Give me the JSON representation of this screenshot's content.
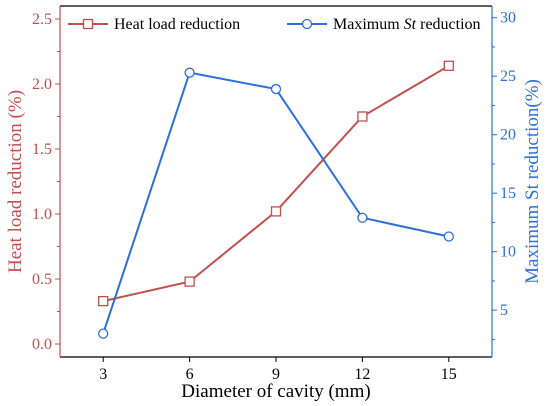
{
  "chart_data": {
    "type": "line",
    "x": [
      3,
      6,
      9,
      12,
      15
    ],
    "xlabel": "Diameter of cavity (mm)",
    "xlim": [
      1.5,
      16.5
    ],
    "x_ticks": [
      "3",
      "6",
      "9",
      "12",
      "15"
    ],
    "left_axis": {
      "label": "Heat load reduction (%)",
      "ylim": [
        -0.1,
        2.6
      ],
      "ticks": [
        "0.0",
        "0.5",
        "1.0",
        "1.5",
        "2.0",
        "2.5"
      ],
      "color": "#c0504d"
    },
    "right_axis": {
      "label": "Maximum St reduction(%)",
      "ylim": [
        1,
        31
      ],
      "ticks": [
        "5",
        "10",
        "15",
        "20",
        "25",
        "30"
      ],
      "color": "#2e6fd9"
    },
    "series": [
      {
        "name": "Heat load reduction",
        "axis": "left",
        "marker": "square",
        "color": "#c0504d",
        "values": [
          0.33,
          0.48,
          1.02,
          1.75,
          2.14
        ]
      },
      {
        "name": "Maximum ",
        "name_italic": "St",
        "name_suffix": " reduction",
        "axis": "right",
        "marker": "circle",
        "color": "#2e6fd9",
        "values": [
          3.0,
          25.3,
          23.9,
          12.9,
          11.3
        ]
      }
    ],
    "legend": "top",
    "grid": false
  }
}
